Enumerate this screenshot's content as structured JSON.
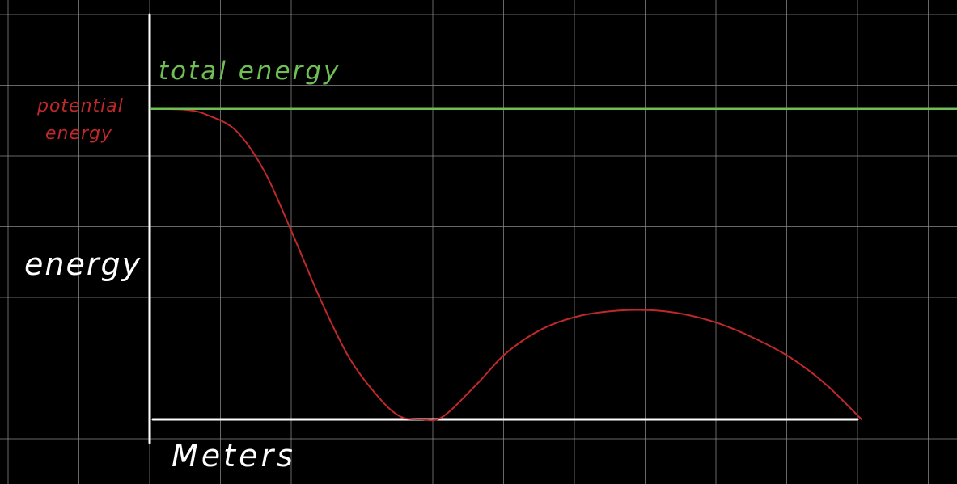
{
  "chart_data": {
    "type": "line",
    "title": "",
    "xlabel": "Meters",
    "ylabel": "energy",
    "grid": true,
    "xlim": [
      0,
      10
    ],
    "ylim": [
      0,
      10
    ],
    "series": [
      {
        "name": "potential energy",
        "color": "#c0282a",
        "x": [
          0,
          0.5,
          0.8,
          1.2,
          1.6,
          2.0,
          2.4,
          2.8,
          3.2,
          3.5,
          3.8,
          4.1,
          4.6,
          5.0,
          5.5,
          6.0,
          6.5,
          7.0,
          7.5,
          8.0,
          8.5,
          9.0,
          9.5,
          10.0
        ],
        "y": [
          9.8,
          9.77,
          9.6,
          9.1,
          7.8,
          5.8,
          3.7,
          1.9,
          0.7,
          0.1,
          0.0,
          0.08,
          1.15,
          2.1,
          2.85,
          3.25,
          3.42,
          3.45,
          3.32,
          3.02,
          2.55,
          1.95,
          1.1,
          0.0
        ]
      },
      {
        "name": "total energy",
        "color": "#6fbf55",
        "x": [
          0,
          11.45
        ],
        "y": [
          9.8,
          9.8
        ]
      }
    ]
  },
  "colors": {
    "background": "#000000",
    "grid": "#8a8a8a",
    "axes": "#ffffff"
  }
}
